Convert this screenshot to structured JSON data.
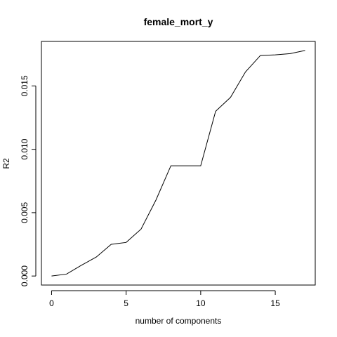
{
  "chart_data": {
    "type": "line",
    "title": "female_mort_y",
    "xlabel": "number of components",
    "ylabel": "R2",
    "xlim": [
      -0.68,
      17.68
    ],
    "ylim": [
      -0.000712,
      0.018512
    ],
    "x_ticks": [
      0,
      5,
      10,
      15
    ],
    "x_tick_labels": [
      "0",
      "5",
      "10",
      "15"
    ],
    "y_ticks": [
      0.0,
      0.005,
      0.01,
      0.015
    ],
    "y_tick_labels": [
      "0.000",
      "0.005",
      "0.010",
      "0.015"
    ],
    "grid": false,
    "legend": "none",
    "line_color": "#000000",
    "x": [
      0,
      1,
      2,
      3,
      4,
      5,
      6,
      7,
      8,
      9,
      10,
      11,
      12,
      13,
      14,
      15,
      16,
      17
    ],
    "y": [
      0.0,
      0.00015,
      0.00085,
      0.0015,
      0.0025,
      0.00265,
      0.0037,
      0.006,
      0.0087,
      0.0087,
      0.0087,
      0.013,
      0.0141,
      0.0161,
      0.0174,
      0.01745,
      0.01755,
      0.0178
    ]
  }
}
